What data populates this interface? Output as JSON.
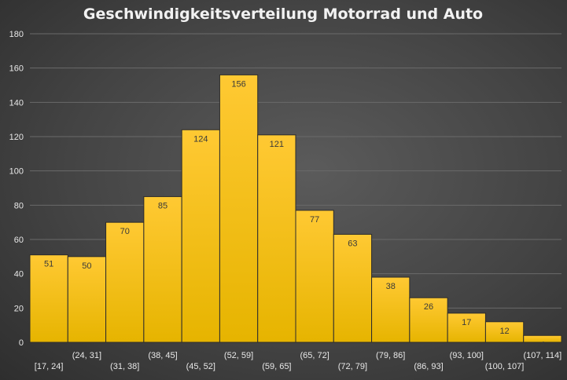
{
  "chart_data": {
    "type": "bar",
    "title": "Geschwindigkeitsverteilung Motorrad und Auto",
    "categories": [
      "[17, 24]",
      "(24, 31]",
      "(31, 38]",
      "(38, 45]",
      "(45, 52]",
      "(52, 59]",
      "(59, 65]",
      "(65, 72]",
      "(72, 79]",
      "(79, 86]",
      "(86, 93]",
      "(93, 100]",
      "(100, 107]",
      "(107, 114]"
    ],
    "values": [
      51,
      50,
      70,
      85,
      124,
      156,
      121,
      77,
      63,
      38,
      26,
      17,
      12,
      4
    ],
    "ylim": [
      0,
      180
    ],
    "yticks": [
      0,
      20,
      40,
      60,
      80,
      100,
      120,
      140,
      160,
      180
    ],
    "grid": true,
    "xlabel": "",
    "ylabel": "",
    "colors": {
      "bar_top": "#ffc933",
      "bar_bottom": "#e6b400",
      "background": "#4a4a4a"
    }
  }
}
